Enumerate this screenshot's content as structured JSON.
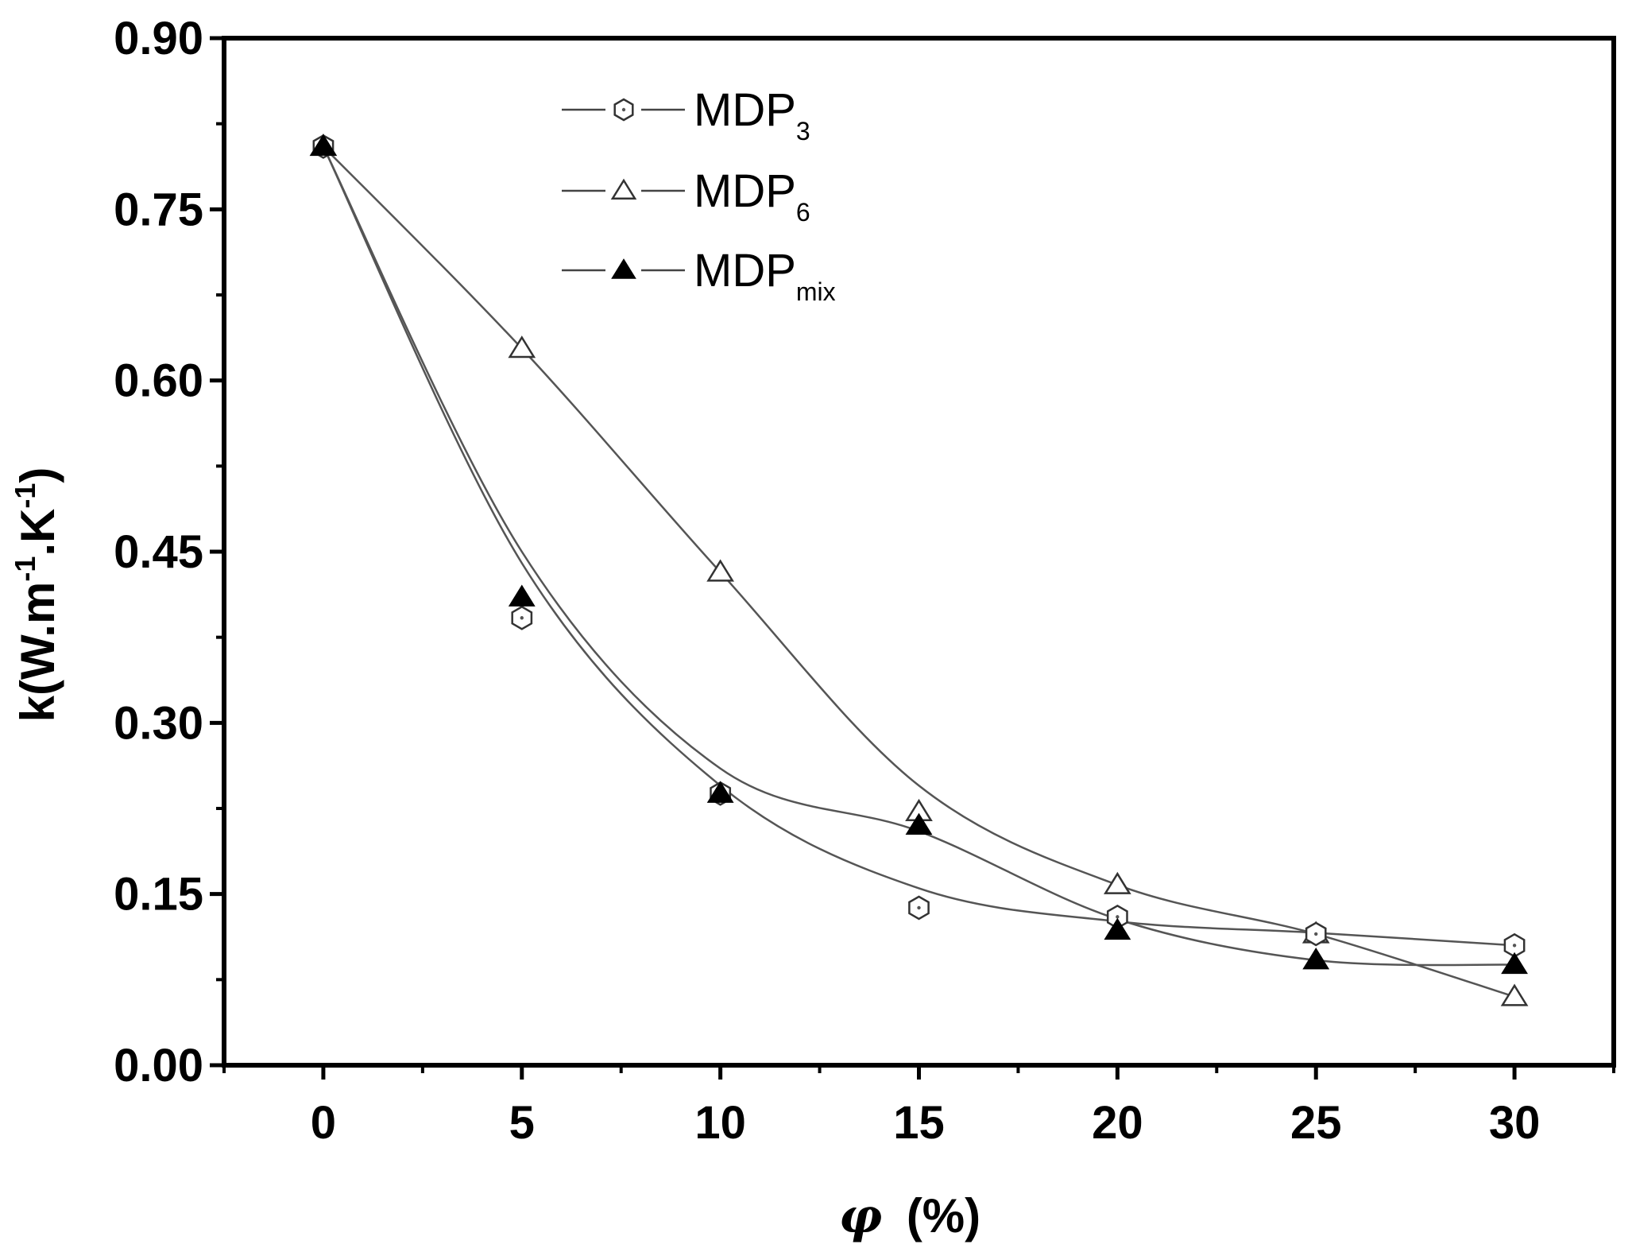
{
  "chart_data": {
    "type": "line",
    "title": "",
    "xlabel_symbol": "φ",
    "xlabel_unit": "(%)",
    "ylabel": "k(W.m",
    "ylabel_exp1": "-1",
    "ylabel_mid": ".K",
    "ylabel_exp2": "-1",
    "ylabel_close": ")",
    "xlim": [
      -2.5,
      32.5
    ],
    "ylim": [
      0,
      0.9
    ],
    "xticks": [
      0,
      5,
      10,
      15,
      20,
      25,
      30
    ],
    "xtick_labels": [
      "0",
      "5",
      "10",
      "15",
      "20",
      "25",
      "30"
    ],
    "yticks": [
      0,
      0.15,
      0.3,
      0.45,
      0.6,
      0.75,
      0.9
    ],
    "ytick_labels": [
      "0.00",
      "0.15",
      "0.30",
      "0.45",
      "0.60",
      "0.75",
      "0.90"
    ],
    "legend_position": "top-left",
    "series": [
      {
        "name": "MDP",
        "subscript": "3",
        "marker": "hexagon-open",
        "x": [
          0,
          5,
          10,
          15,
          20,
          25,
          30
        ],
        "values": [
          0.805,
          0.392,
          0.238,
          0.138,
          0.13,
          0.115,
          0.105
        ],
        "fit": [
          0.805,
          0.44,
          0.245,
          0.155,
          0.126,
          0.116,
          0.105
        ]
      },
      {
        "name": "MDP",
        "subscript": "6",
        "marker": "triangle-open",
        "x": [
          0,
          5,
          10,
          15,
          20,
          25,
          30
        ],
        "values": [
          0.805,
          0.628,
          0.432,
          0.222,
          0.158,
          0.115,
          0.06
        ],
        "fit": [
          0.805,
          0.628,
          0.432,
          0.245,
          0.158,
          0.115,
          0.06
        ]
      },
      {
        "name": "MDP",
        "subscript": "mix",
        "marker": "triangle-filled",
        "x": [
          0,
          5,
          10,
          15,
          20,
          25,
          30
        ],
        "values": [
          0.805,
          0.41,
          0.238,
          0.21,
          0.118,
          0.092,
          0.088
        ],
        "fit": [
          0.805,
          0.45,
          0.26,
          0.205,
          0.128,
          0.092,
          0.088
        ]
      }
    ]
  }
}
